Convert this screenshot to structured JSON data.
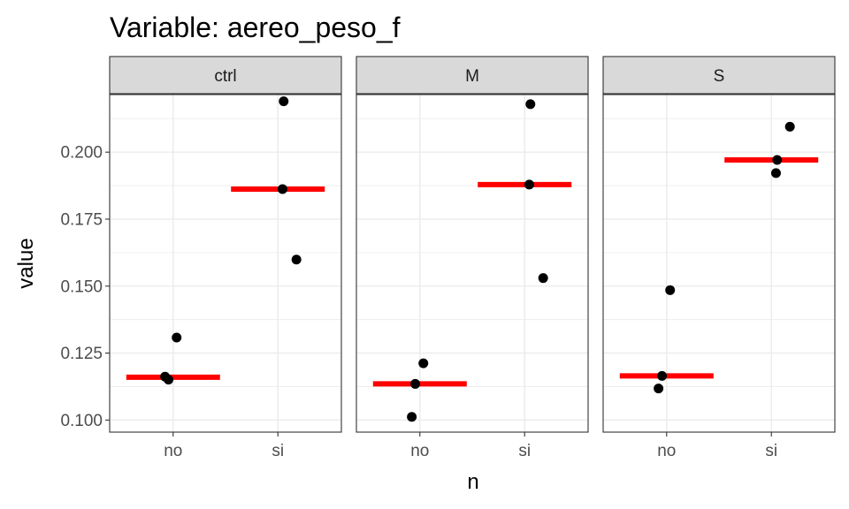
{
  "chart_data": {
    "type": "scatter",
    "title": "Variable: aereo_peso_f",
    "xlabel": "n",
    "ylabel": "value",
    "categories": [
      "no",
      "si"
    ],
    "ylim": [
      0.0955,
      0.2215
    ],
    "yticks": [
      0.1,
      0.125,
      0.15,
      0.175,
      0.2
    ],
    "ytick_labels": [
      "0.100",
      "0.125",
      "0.150",
      "0.175",
      "0.200"
    ],
    "grid": true,
    "point_color": "#000000",
    "mean_color": "#ff0000",
    "panels": [
      {
        "label": "ctrl",
        "points": [
          {
            "x": "no",
            "y": 0.1162
          },
          {
            "x": "no",
            "y": 0.1151
          },
          {
            "x": "no",
            "y": 0.1308
          },
          {
            "x": "si",
            "y": 0.219
          },
          {
            "x": "si",
            "y": 0.1862
          },
          {
            "x": "si",
            "y": 0.1599
          }
        ],
        "means": [
          {
            "x": "no",
            "y": 0.116
          },
          {
            "x": "si",
            "y": 0.1862
          }
        ]
      },
      {
        "label": "M",
        "points": [
          {
            "x": "no",
            "y": 0.1012
          },
          {
            "x": "no",
            "y": 0.1135
          },
          {
            "x": "no",
            "y": 0.1212
          },
          {
            "x": "si",
            "y": 0.2179
          },
          {
            "x": "si",
            "y": 0.1879
          },
          {
            "x": "si",
            "y": 0.153
          }
        ],
        "means": [
          {
            "x": "no",
            "y": 0.1135
          },
          {
            "x": "si",
            "y": 0.1879
          }
        ]
      },
      {
        "label": "S",
        "points": [
          {
            "x": "no",
            "y": 0.1118
          },
          {
            "x": "no",
            "y": 0.1165
          },
          {
            "x": "no",
            "y": 0.1485
          },
          {
            "x": "si",
            "y": 0.1971
          },
          {
            "x": "si",
            "y": 0.1922
          },
          {
            "x": "si",
            "y": 0.2095
          }
        ],
        "means": [
          {
            "x": "no",
            "y": 0.1165
          },
          {
            "x": "si",
            "y": 0.1971
          }
        ]
      }
    ]
  }
}
